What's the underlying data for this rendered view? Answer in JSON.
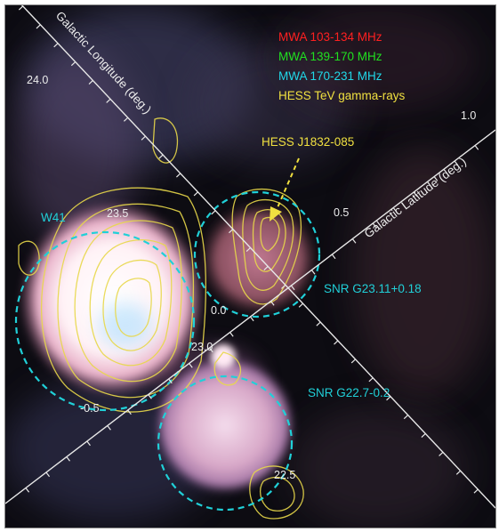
{
  "legend": {
    "items": [
      {
        "label": "MWA 103-134 MHz",
        "color": "#ff2020"
      },
      {
        "label": "MWA 139-170 MHz",
        "color": "#20e020"
      },
      {
        "label": "MWA 170-231 MHz",
        "color": "#20d8e8"
      },
      {
        "label": "HESS TeV gamma-rays",
        "color": "#f0e040"
      }
    ]
  },
  "axes": {
    "longitude_title": "Galactic Longitude (deg.)",
    "latitude_title": "Galactic Latitude (deg.)",
    "longitude_ticks": [
      "24.0",
      "23.5",
      "23.0",
      "22.5"
    ],
    "latitude_ticks": [
      "1.0",
      "0.5",
      "0.0",
      "-0.5"
    ]
  },
  "annotations": {
    "hess_source": "HESS J1832-085",
    "w41": "W41",
    "snr1": "SNR G23.11+0.18",
    "snr2": "SNR G22.7-0.2"
  },
  "colors": {
    "annotation_yellow": "#f0e040",
    "circle_cyan": "#20d0d8",
    "axis_white": "#e8e8e8"
  }
}
